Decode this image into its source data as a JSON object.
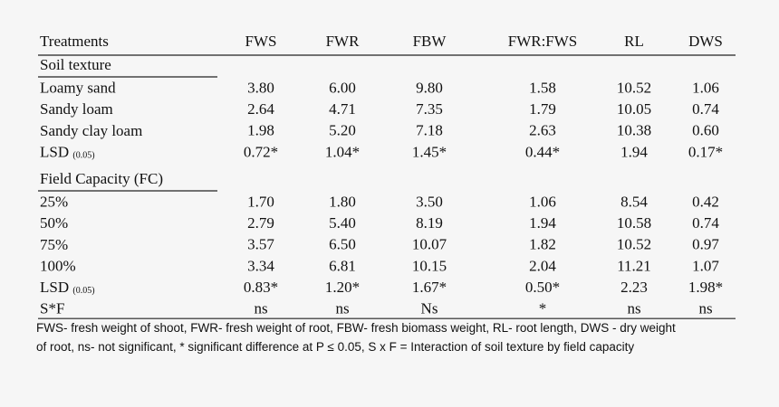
{
  "table": {
    "columns": [
      "Treatments",
      "FWS",
      "FWR",
      "FBW",
      "FWR:FWS",
      "RL",
      "DWS"
    ],
    "sections": [
      {
        "title": "Soil texture",
        "rows": [
          {
            "label": "Loamy sand",
            "values": [
              "3.80",
              "6.00",
              "9.80",
              "1.58",
              "10.52",
              "1.06"
            ]
          },
          {
            "label": "Sandy loam",
            "values": [
              "2.64",
              "4.71",
              "7.35",
              "1.79",
              "10.05",
              "0.74"
            ]
          },
          {
            "label": "Sandy clay loam",
            "values": [
              "1.98",
              "5.20",
              "7.18",
              "2.63",
              "10.38",
              "0.60"
            ]
          },
          {
            "label": "LSD",
            "label_sub": "(0.05)",
            "values": [
              "0.72*",
              "1.04*",
              "1.45*",
              "0.44*",
              "1.94",
              "0.17*"
            ]
          }
        ]
      },
      {
        "title": "Field Capacity (FC)",
        "rows": [
          {
            "label": "25%",
            "values": [
              "1.70",
              "1.80",
              "3.50",
              "1.06",
              "8.54",
              "0.42"
            ]
          },
          {
            "label": "50%",
            "values": [
              "2.79",
              "5.40",
              "8.19",
              "1.94",
              "10.58",
              "0.74"
            ]
          },
          {
            "label": "75%",
            "values": [
              "3.57",
              "6.50",
              "10.07",
              "1.82",
              "10.52",
              "0.97"
            ]
          },
          {
            "label": "100%",
            "values": [
              "3.34",
              "6.81",
              "10.15",
              "2.04",
              "11.21",
              "1.07"
            ]
          },
          {
            "label": "LSD",
            "label_sub": "(0.05)",
            "values": [
              "0.83*",
              "1.20*",
              "1.67*",
              "0.50*",
              "2.23",
              "1.98*"
            ]
          },
          {
            "label": "S*F",
            "values": [
              "ns",
              "ns",
              "Ns",
              "*",
              "ns",
              "ns"
            ]
          }
        ]
      }
    ],
    "footnote": [
      "FWS- fresh weight of shoot, FWR- fresh weight of root, FBW- fresh biomass weight, RL- root length, DWS - dry weight",
      "of root, ns- not significant, * significant difference at P ≤ 0.05, S x F = Interaction of soil texture by field capacity"
    ]
  }
}
